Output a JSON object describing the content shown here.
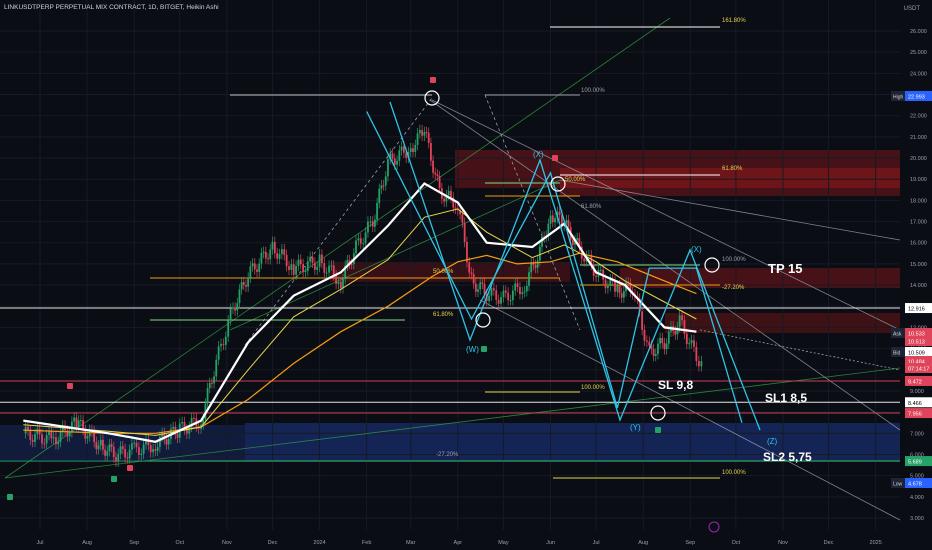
{
  "header": {
    "title": "LINKUSDTPERP PERPETUAL MIX CONTRACT, 1D, BITGET, Heikin Ashi",
    "currency": "USDT"
  },
  "colors": {
    "bg": "#0b0d14",
    "up": "#26a269",
    "down": "#e0445a",
    "ma_white": "#ffffff",
    "ma_orange": "#f39c12",
    "ma_yellow": "#e6d64a",
    "abc_line": "#2ec4e6"
  },
  "chart_data": {
    "type": "line",
    "title": "LINKUSDTPERP PERPETUAL MIX CONTRACT, 1D, BITGET, Heikin Ashi",
    "ylim": [
      2.6,
      27.0
    ],
    "y_ticks": [
      "26.000",
      "25.000",
      "24.000",
      "23.000",
      "22.000",
      "21.000",
      "20.000",
      "19.000",
      "18.000",
      "17.000",
      "16.000",
      "15.000",
      "14.000",
      "13.000",
      "12.000",
      "11.000",
      "10.000",
      "9.000",
      "8.000",
      "7.000",
      "6.000",
      "5.000",
      "4.000",
      "3.000"
    ],
    "x_ticks": [
      "Jul",
      "Aug",
      "Sep",
      "Oct",
      "Nov",
      "Dec",
      "2024",
      "Feb",
      "Mar",
      "Apr",
      "May",
      "Jun",
      "Jul",
      "Aug",
      "Sep",
      "Oct",
      "Nov",
      "Dec",
      "2025"
    ],
    "series": [
      {
        "name": "price",
        "x": [
          "2023-06-20",
          "2023-07-10",
          "2023-07-25",
          "2023-08-10",
          "2023-08-20",
          "2023-09-01",
          "2023-09-15",
          "2023-10-01",
          "2023-10-15",
          "2023-10-25",
          "2023-11-05",
          "2023-11-15",
          "2023-12-01",
          "2023-12-15",
          "2024-01-01",
          "2024-01-15",
          "2024-01-25",
          "2024-02-05",
          "2024-02-15",
          "2024-03-01",
          "2024-03-10",
          "2024-03-20",
          "2024-04-01",
          "2024-04-10",
          "2024-04-20",
          "2024-05-01",
          "2024-05-15",
          "2024-05-25",
          "2024-06-01",
          "2024-06-10",
          "2024-06-20",
          "2024-07-01",
          "2024-07-15",
          "2024-07-25",
          "2024-08-05",
          "2024-08-15",
          "2024-08-25",
          "2024-09-05",
          "2024-09-10"
        ],
        "y": [
          7.0,
          6.7,
          7.5,
          6.4,
          6.0,
          6.2,
          6.5,
          7.2,
          7.6,
          10.4,
          12.9,
          14.5,
          15.8,
          14.8,
          15.1,
          14.2,
          15.8,
          17.0,
          19.8,
          20.5,
          21.3,
          18.4,
          17.8,
          14.2,
          13.6,
          13.4,
          14.0,
          15.6,
          17.4,
          16.9,
          15.7,
          14.6,
          13.7,
          13.9,
          10.8,
          11.3,
          12.3,
          10.6,
          10.3
        ]
      },
      {
        "name": "ma_white",
        "x": [
          "2023-06-20",
          "2023-08-15",
          "2023-09-15",
          "2023-10-15",
          "2023-11-15",
          "2023-12-15",
          "2024-01-15",
          "2024-02-15",
          "2024-03-15",
          "2024-04-01",
          "2024-04-20",
          "2024-05-10",
          "2024-06-01",
          "2024-06-20",
          "2024-07-15",
          "2024-08-15",
          "2024-09-05"
        ],
        "y": [
          7.15,
          7.0,
          7.0,
          7.3,
          8.6,
          10.3,
          11.8,
          13.0,
          14.4,
          15.1,
          15.4,
          15.0,
          15.1,
          15.5,
          15.1,
          14.2,
          13.6
        ]
      },
      {
        "name": "ma_orange",
        "x": [
          "2023-06-20",
          "2023-08-15",
          "2023-09-15",
          "2023-10-15",
          "2023-11-15",
          "2023-12-15",
          "2024-01-15",
          "2024-02-15",
          "2024-03-10",
          "2024-04-01",
          "2024-04-20",
          "2024-05-20",
          "2024-06-10",
          "2024-07-01",
          "2024-07-20",
          "2024-08-15",
          "2024-09-05"
        ],
        "y": [
          7.4,
          7.1,
          6.9,
          7.3,
          10.0,
          12.5,
          13.8,
          15.2,
          17.2,
          17.6,
          16.5,
          15.3,
          15.9,
          15.1,
          14.2,
          13.2,
          12.4
        ]
      },
      {
        "name": "ma_yellow",
        "x": [
          "2023-06-20",
          "2023-08-15",
          "2023-09-15",
          "2023-10-15",
          "2023-11-15",
          "2023-12-15",
          "2024-01-15",
          "2024-02-15",
          "2024-03-10",
          "2024-04-01",
          "2024-04-20",
          "2024-05-20",
          "2024-06-10",
          "2024-07-01",
          "2024-07-20",
          "2024-08-15",
          "2024-09-05"
        ],
        "y": [
          7.6,
          7.0,
          6.6,
          7.6,
          11.3,
          13.5,
          14.6,
          16.8,
          18.8,
          17.9,
          16.0,
          15.8,
          16.9,
          14.6,
          14.0,
          12.0,
          11.8
        ]
      },
      {
        "name": "wxyxz_path",
        "x": [
          "2024-02-01",
          "2024-04-10",
          "2024-06-01",
          "2024-07-15",
          "2024-08-05",
          "2024-09-05",
          "2024-10-05"
        ],
        "y": [
          22.2,
          12.4,
          19.3,
          8.2,
          14.8,
          14.8,
          7.5
        ]
      }
    ],
    "horizontal_levels": [
      {
        "price": 12.916,
        "color": "#ffffff",
        "label": "12.916"
      },
      {
        "price": 9.472,
        "color": "#e0445a",
        "label": "9.472"
      },
      {
        "price": 8.466,
        "color": "#ffffff",
        "label": "8.466"
      },
      {
        "price": 7.956,
        "color": "#e0445a",
        "label": "7.956"
      },
      {
        "price": 5.689,
        "color": "#26a269",
        "label": "5.689"
      }
    ],
    "price_tags": [
      {
        "label": "High",
        "value": "22.993",
        "color": "#2962ff"
      },
      {
        "label": "Ask",
        "value": "10.533",
        "color": "#e0445a"
      },
      {
        "label": "",
        "value": "10.513",
        "color": "#e0445a"
      },
      {
        "label": "Bid",
        "value": "10.509",
        "color": "#ffffff"
      },
      {
        "label": "",
        "value": "10.484",
        "color": "#e0445a"
      },
      {
        "label": "",
        "value": "07:14:17",
        "color": "#e0445a"
      },
      {
        "label": "Low",
        "value": "4.678",
        "color": "#2962ff"
      }
    ],
    "fib_labels": [
      "161.80%",
      "100.00%",
      "61.80%",
      "50.00%",
      "61.80%",
      "50.00%",
      "61.80%",
      "100.00%",
      "-27.20%",
      "100.00%",
      "-27.20%",
      "100.00%"
    ],
    "wave_labels": [
      "(W)",
      "(X)",
      "(Y)",
      "(X)",
      "(Z)"
    ],
    "annotations": [
      "TP 15",
      "SL 9,8",
      "SL1 8,5",
      "SL2 5,75"
    ]
  }
}
